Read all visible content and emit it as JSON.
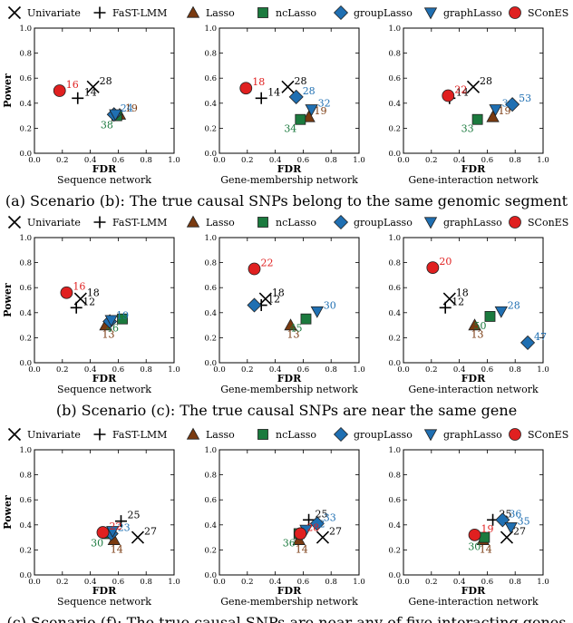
{
  "legend": [
    {
      "name": "Univariate",
      "marker": "x",
      "color": "#000000"
    },
    {
      "name": "FaST-LMM",
      "marker": "plus",
      "color": "#000000"
    },
    {
      "name": "Lasso",
      "marker": "triangle-up",
      "color": "#7a3a10"
    },
    {
      "name": "ncLasso",
      "marker": "square",
      "color": "#1b7a3e"
    },
    {
      "name": "groupLasso",
      "marker": "diamond",
      "color": "#1f6fb2"
    },
    {
      "name": "graphLasso",
      "marker": "triangle-down",
      "color": "#1f6fb2"
    },
    {
      "name": "SConES",
      "marker": "circle",
      "color": "#e02020"
    }
  ],
  "label_colors": {
    "Univariate": "#000000",
    "FaST-LMM": "#000000",
    "Lasso": "#7a3a10",
    "ncLasso": "#1b7a3e",
    "groupLasso": "#1f6fb2",
    "graphLasso": "#1f6fb2",
    "SConES": "#e02020"
  },
  "axis": {
    "xlabel": "FDR",
    "ylabel": "Power"
  },
  "scenarios": [
    {
      "caption": "(a) Scenario (b): The true causal SNPs belong to the same genomic segment",
      "panels": [
        {
          "network": "Sequence network"
        },
        {
          "network": "Gene-membership network"
        },
        {
          "network": "Gene-interaction network"
        }
      ]
    },
    {
      "caption": "(b) Scenario (c): The true causal SNPs are near the same gene",
      "panels": [
        {
          "network": "Sequence network"
        },
        {
          "network": "Gene-membership network"
        },
        {
          "network": "Gene-interaction network"
        }
      ]
    },
    {
      "caption": "(c) Scenario (f): The true causal SNPs are near any of five interacting genes",
      "panels": [
        {
          "network": "Sequence network"
        },
        {
          "network": "Gene-membership network"
        },
        {
          "network": "Gene-interaction network"
        }
      ]
    }
  ],
  "chart_data": [
    {
      "type": "scatter",
      "scenario": "Scenario (b)",
      "network": "Sequence network",
      "xlabel": "FDR",
      "ylabel": "Power",
      "xlim": [
        0,
        1
      ],
      "ylim": [
        0,
        1
      ],
      "points": [
        {
          "method": "Univariate",
          "x": 0.42,
          "y": 0.53,
          "label": "28"
        },
        {
          "method": "FaST-LMM",
          "x": 0.31,
          "y": 0.44,
          "label": "14"
        },
        {
          "method": "Lasso",
          "x": 0.61,
          "y": 0.31,
          "label": "19"
        },
        {
          "method": "ncLasso",
          "x": 0.59,
          "y": 0.3,
          "label": "38"
        },
        {
          "method": "groupLasso",
          "x": 0.57,
          "y": 0.31,
          "label": "24"
        },
        {
          "method": "graphLasso",
          "x": 0.58,
          "y": 0.31,
          "label": ""
        },
        {
          "method": "SConES",
          "x": 0.18,
          "y": 0.5,
          "label": "16"
        }
      ]
    },
    {
      "type": "scatter",
      "scenario": "Scenario (b)",
      "network": "Gene-membership network",
      "xlabel": "FDR",
      "ylabel": "Power",
      "xlim": [
        0,
        1
      ],
      "ylim": [
        0,
        1
      ],
      "points": [
        {
          "method": "Univariate",
          "x": 0.49,
          "y": 0.53,
          "label": "28"
        },
        {
          "method": "FaST-LMM",
          "x": 0.3,
          "y": 0.44,
          "label": "14"
        },
        {
          "method": "Lasso",
          "x": 0.64,
          "y": 0.29,
          "label": "19"
        },
        {
          "method": "ncLasso",
          "x": 0.58,
          "y": 0.27,
          "label": "34"
        },
        {
          "method": "groupLasso",
          "x": 0.55,
          "y": 0.45,
          "label": "28"
        },
        {
          "method": "graphLasso",
          "x": 0.66,
          "y": 0.35,
          "label": "32"
        },
        {
          "method": "SConES",
          "x": 0.19,
          "y": 0.52,
          "label": "18"
        }
      ]
    },
    {
      "type": "scatter",
      "scenario": "Scenario (b)",
      "network": "Gene-interaction network",
      "xlabel": "FDR",
      "ylabel": "Power",
      "xlim": [
        0,
        1
      ],
      "ylim": [
        0,
        1
      ],
      "points": [
        {
          "method": "Univariate",
          "x": 0.5,
          "y": 0.53,
          "label": "28"
        },
        {
          "method": "FaST-LMM",
          "x": 0.33,
          "y": 0.44,
          "label": "14"
        },
        {
          "method": "Lasso",
          "x": 0.64,
          "y": 0.29,
          "label": "19"
        },
        {
          "method": "ncLasso",
          "x": 0.53,
          "y": 0.27,
          "label": "33"
        },
        {
          "method": "groupLasso",
          "x": 0.78,
          "y": 0.39,
          "label": "53"
        },
        {
          "method": "graphLasso",
          "x": 0.66,
          "y": 0.35,
          "label": "33"
        },
        {
          "method": "SConES",
          "x": 0.32,
          "y": 0.46,
          "label": "22"
        }
      ]
    },
    {
      "type": "scatter",
      "scenario": "Scenario (c)",
      "network": "Sequence network",
      "xlabel": "FDR",
      "ylabel": "Power",
      "xlim": [
        0,
        1
      ],
      "ylim": [
        0,
        1
      ],
      "points": [
        {
          "method": "Univariate",
          "x": 0.33,
          "y": 0.51,
          "label": "18"
        },
        {
          "method": "FaST-LMM",
          "x": 0.3,
          "y": 0.44,
          "label": "12"
        },
        {
          "method": "Lasso",
          "x": 0.51,
          "y": 0.3,
          "label": "13"
        },
        {
          "method": "ncLasso",
          "x": 0.63,
          "y": 0.35,
          "label": "46"
        },
        {
          "method": "groupLasso",
          "x": 0.54,
          "y": 0.33,
          "label": "19"
        },
        {
          "method": "graphLasso",
          "x": 0.55,
          "y": 0.34,
          "label": ""
        },
        {
          "method": "SConES",
          "x": 0.23,
          "y": 0.56,
          "label": "16"
        }
      ]
    },
    {
      "type": "scatter",
      "scenario": "Scenario (c)",
      "network": "Gene-membership network",
      "xlabel": "FDR",
      "ylabel": "Power",
      "xlim": [
        0,
        1
      ],
      "ylim": [
        0,
        1
      ],
      "points": [
        {
          "method": "Univariate",
          "x": 0.33,
          "y": 0.51,
          "label": "18"
        },
        {
          "method": "FaST-LMM",
          "x": 0.3,
          "y": 0.46,
          "label": "12"
        },
        {
          "method": "Lasso",
          "x": 0.51,
          "y": 0.3,
          "label": "13"
        },
        {
          "method": "ncLasso",
          "x": 0.62,
          "y": 0.35,
          "label": "45"
        },
        {
          "method": "groupLasso",
          "x": 0.25,
          "y": 0.46,
          "label": ""
        },
        {
          "method": "graphLasso",
          "x": 0.7,
          "y": 0.41,
          "label": "30"
        },
        {
          "method": "SConES",
          "x": 0.25,
          "y": 0.75,
          "label": "22"
        }
      ]
    },
    {
      "type": "scatter",
      "scenario": "Scenario (c)",
      "network": "Gene-interaction network",
      "xlabel": "FDR",
      "ylabel": "Power",
      "xlim": [
        0,
        1
      ],
      "ylim": [
        0,
        1
      ],
      "points": [
        {
          "method": "Univariate",
          "x": 0.33,
          "y": 0.51,
          "label": "18"
        },
        {
          "method": "FaST-LMM",
          "x": 0.3,
          "y": 0.44,
          "label": "12"
        },
        {
          "method": "Lasso",
          "x": 0.51,
          "y": 0.3,
          "label": "13"
        },
        {
          "method": "ncLasso",
          "x": 0.62,
          "y": 0.37,
          "label": "50"
        },
        {
          "method": "groupLasso",
          "x": 0.89,
          "y": 0.16,
          "label": "47"
        },
        {
          "method": "graphLasso",
          "x": 0.7,
          "y": 0.41,
          "label": "28"
        },
        {
          "method": "SConES",
          "x": 0.21,
          "y": 0.76,
          "label": "20"
        }
      ]
    },
    {
      "type": "scatter",
      "scenario": "Scenario (f)",
      "network": "Sequence network",
      "xlabel": "FDR",
      "ylabel": "Power",
      "xlim": [
        0,
        1
      ],
      "ylim": [
        0,
        1
      ],
      "points": [
        {
          "method": "Univariate",
          "x": 0.74,
          "y": 0.3,
          "label": "27"
        },
        {
          "method": "FaST-LMM",
          "x": 0.62,
          "y": 0.43,
          "label": "25"
        },
        {
          "method": "Lasso",
          "x": 0.57,
          "y": 0.28,
          "label": "14"
        },
        {
          "method": "ncLasso",
          "x": 0.52,
          "y": 0.33,
          "label": "30"
        },
        {
          "method": "groupLasso",
          "x": 0.55,
          "y": 0.33,
          "label": "23"
        },
        {
          "method": "graphLasso",
          "x": 0.56,
          "y": 0.35,
          "label": ""
        },
        {
          "method": "SConES",
          "x": 0.49,
          "y": 0.34,
          "label": "22"
        }
      ]
    },
    {
      "type": "scatter",
      "scenario": "Scenario (f)",
      "network": "Gene-membership network",
      "xlabel": "FDR",
      "ylabel": "Power",
      "xlim": [
        0,
        1
      ],
      "ylim": [
        0,
        1
      ],
      "points": [
        {
          "method": "Univariate",
          "x": 0.74,
          "y": 0.3,
          "label": "27"
        },
        {
          "method": "FaST-LMM",
          "x": 0.64,
          "y": 0.44,
          "label": "25"
        },
        {
          "method": "Lasso",
          "x": 0.57,
          "y": 0.28,
          "label": "14"
        },
        {
          "method": "ncLasso",
          "x": 0.57,
          "y": 0.33,
          "label": "36"
        },
        {
          "method": "groupLasso",
          "x": 0.7,
          "y": 0.41,
          "label": "33"
        },
        {
          "method": "graphLasso",
          "x": 0.62,
          "y": 0.36,
          "label": "22"
        },
        {
          "method": "SConES",
          "x": 0.58,
          "y": 0.33,
          "label": "28"
        }
      ]
    },
    {
      "type": "scatter",
      "scenario": "Scenario (f)",
      "network": "Gene-interaction network",
      "xlabel": "FDR",
      "ylabel": "Power",
      "xlim": [
        0,
        1
      ],
      "ylim": [
        0,
        1
      ],
      "points": [
        {
          "method": "Univariate",
          "x": 0.74,
          "y": 0.3,
          "label": "27"
        },
        {
          "method": "FaST-LMM",
          "x": 0.64,
          "y": 0.44,
          "label": "25"
        },
        {
          "method": "Lasso",
          "x": 0.57,
          "y": 0.28,
          "label": "14"
        },
        {
          "method": "ncLasso",
          "x": 0.58,
          "y": 0.3,
          "label": "30"
        },
        {
          "method": "groupLasso",
          "x": 0.71,
          "y": 0.44,
          "label": "36"
        },
        {
          "method": "graphLasso",
          "x": 0.77,
          "y": 0.38,
          "label": "35"
        },
        {
          "method": "SConES",
          "x": 0.51,
          "y": 0.32,
          "label": "19"
        }
      ]
    }
  ]
}
